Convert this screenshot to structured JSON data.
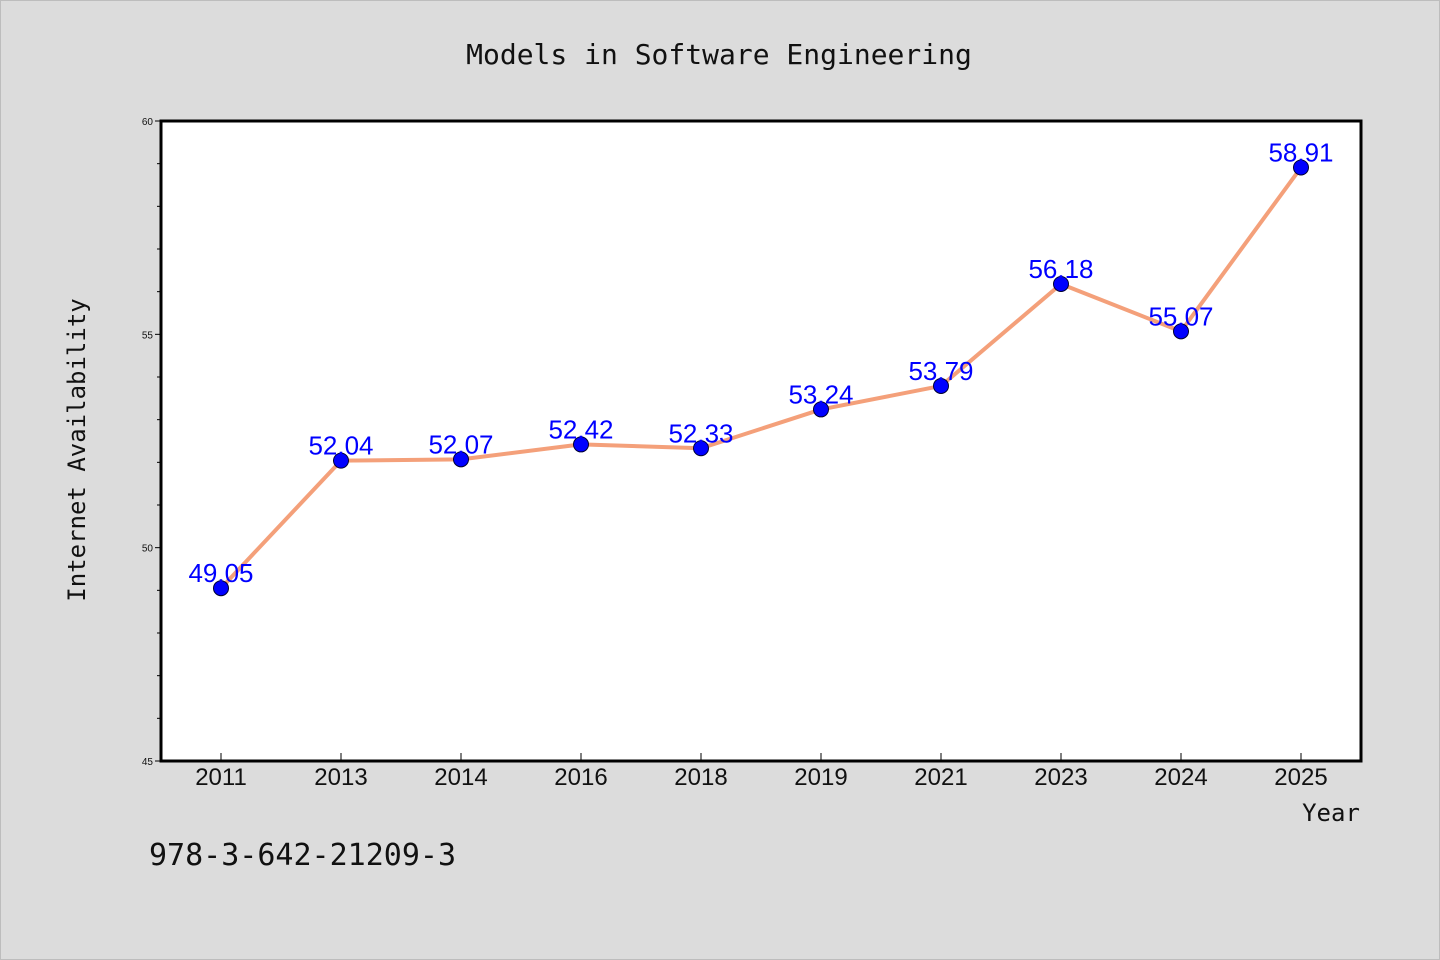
{
  "chart_data": {
    "type": "line",
    "title": "Models in Software Engineering",
    "xlabel": "Year",
    "ylabel": "Internet Availability",
    "categories": [
      "2011",
      "2013",
      "2014",
      "2016",
      "2018",
      "2019",
      "2021",
      "2023",
      "2024",
      "2025"
    ],
    "values": [
      49.05,
      52.04,
      52.07,
      52.42,
      52.33,
      53.24,
      53.79,
      56.18,
      55.07,
      58.91
    ],
    "data_labels": [
      "49.05",
      "52.04",
      "52.07",
      "52.42",
      "52.33",
      "53.24",
      "53.79",
      "56.18",
      "55.07",
      "58.91"
    ],
    "ylim": [
      45,
      60
    ],
    "y_ticks": [
      "45",
      "50",
      "55",
      "60"
    ],
    "grid": false,
    "legend": "none",
    "colors": {
      "line": "#f4a07a",
      "marker": "#0000ff",
      "label": "#0000ff",
      "plot_background": "#ffffff",
      "figure_background": "#dcdcdc"
    }
  },
  "annotation": "978-3-642-21209-3"
}
